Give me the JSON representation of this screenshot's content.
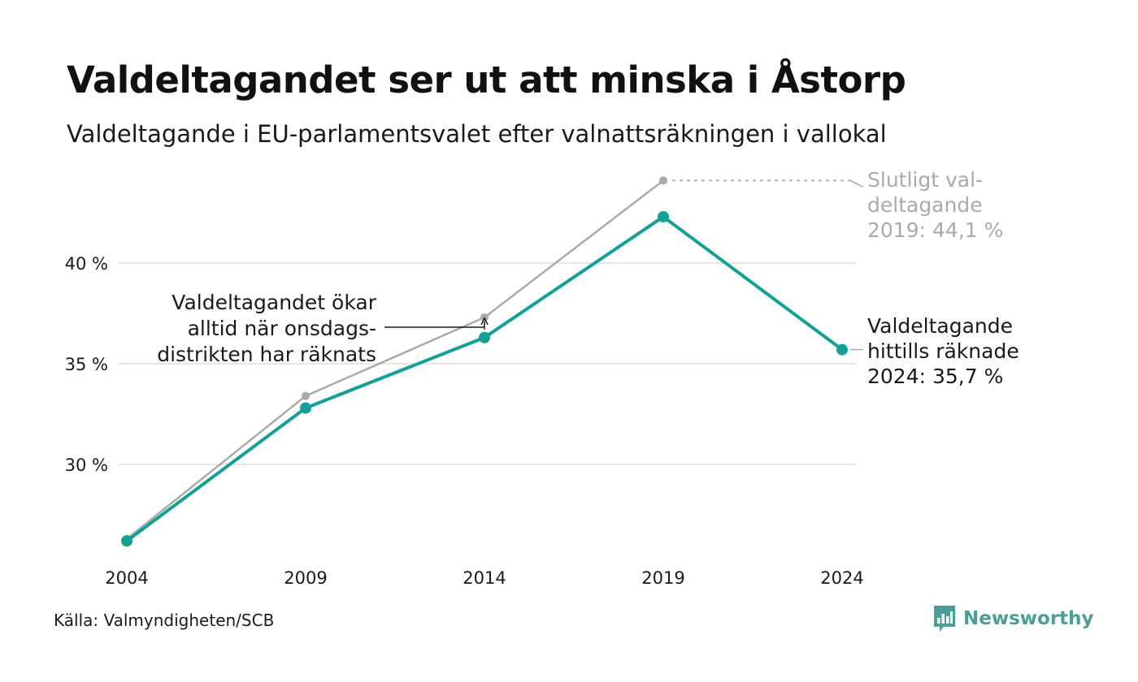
{
  "title": "Valdeltagandet ser ut att minska i Åstorp",
  "subtitle": "Valdeltagande i EU-parlamentsvalet efter valnattsräkningen i vallokal",
  "source": "Källa: Valmyndigheten/SCB",
  "logo": {
    "text": "Newsworthy",
    "color": "#4a9e95",
    "icon": "bar-chart-logo-icon"
  },
  "colors": {
    "preliminary": "#14a096",
    "final": "#aaaaaa",
    "grid": "#e6e6e6"
  },
  "chart_data": {
    "type": "line",
    "title": "Valdeltagandet ser ut att minska i Åstorp",
    "subtitle": "Valdeltagande i EU-parlamentsvalet efter valnattsräkningen i vallokal",
    "x": [
      2004,
      2009,
      2014,
      2019,
      2024
    ],
    "x_tick_labels": [
      "2004",
      "2009",
      "2014",
      "2019",
      "2024"
    ],
    "y_ticks": [
      30,
      35,
      40
    ],
    "y_tick_labels": [
      "30 %",
      "35 %",
      "40 %"
    ],
    "ylim": [
      25.3,
      45.2
    ],
    "grid": true,
    "legend": "none",
    "series": [
      {
        "key": "final",
        "values": [
          26.3,
          33.4,
          37.3,
          44.1,
          null
        ],
        "color": "#aaaaaa"
      },
      {
        "key": "preliminary",
        "values": [
          26.2,
          32.8,
          36.3,
          42.3,
          35.7
        ],
        "color": "#14a096"
      }
    ],
    "annotations": [
      {
        "key": "final2019",
        "lines": [
          "Slutligt val-",
          "deltagande",
          "2019: 44,1 %"
        ],
        "x": 2019,
        "y": 44.1,
        "color": "#aaaaaa"
      },
      {
        "key": "prelim2024",
        "lines": [
          "Valdeltagande",
          "hittills räknade",
          "2024: 35,7 %"
        ],
        "x": 2024,
        "y": 35.7,
        "color": "#1a1a1a"
      },
      {
        "key": "note2014",
        "lines": [
          "Valdeltagandet ökar",
          "alltid när onsdags-",
          "distrikten har räknats"
        ],
        "x": 2014,
        "y": 37.3,
        "color": "#1a1a1a"
      }
    ]
  }
}
